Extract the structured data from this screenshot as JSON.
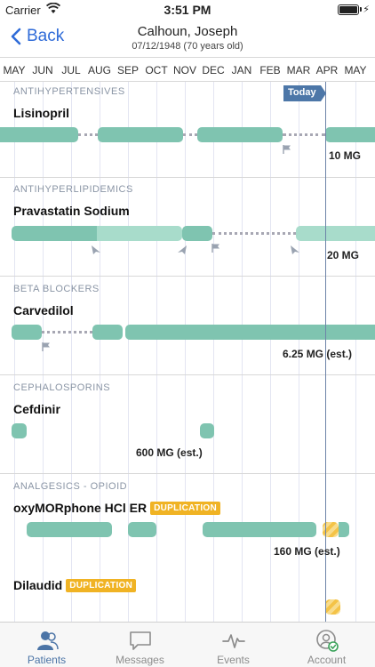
{
  "status": {
    "carrier": "Carrier",
    "time": "3:51 PM"
  },
  "nav": {
    "back_label": "Back",
    "patient_name": "Calhoun, Joseph",
    "patient_dob": "07/12/1948 (70 years old)"
  },
  "months": [
    "MAY",
    "JUN",
    "JUL",
    "AUG",
    "SEP",
    "OCT",
    "NOV",
    "DEC",
    "JAN",
    "FEB",
    "MAR",
    "APR",
    "MAY"
  ],
  "today_label": "Today",
  "sections": [
    {
      "category": "ANTIHYPERTENSIVES",
      "drug": "Lisinopril",
      "dose": "10 MG"
    },
    {
      "category": "ANTIHYPERLIPIDEMICS",
      "drug": "Pravastatin Sodium",
      "dose": "20 MG"
    },
    {
      "category": "BETA BLOCKERS",
      "drug": "Carvedilol",
      "dose": "6.25 MG (est.)"
    },
    {
      "category": "CEPHALOSPORINS",
      "drug": "Cefdinir",
      "dose": "600 MG (est.)"
    },
    {
      "category": "ANALGESICS - OPIOID",
      "drug": "oxyMORphone HCl ER",
      "badge": "DUPLICATION",
      "dose": "160 MG (est.)",
      "drug2": "Dilaudid",
      "badge2": "DUPLICATION"
    }
  ],
  "tabs": [
    {
      "label": "Patients",
      "icon": "patients-icon"
    },
    {
      "label": "Messages",
      "icon": "messages-icon"
    },
    {
      "label": "Events",
      "icon": "events-icon"
    },
    {
      "label": "Account",
      "icon": "account-icon"
    }
  ]
}
